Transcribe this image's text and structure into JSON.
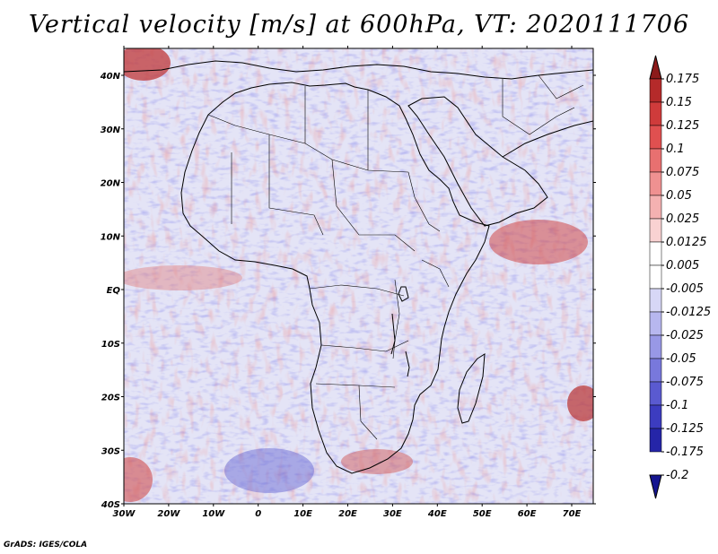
{
  "title": "Vertical velocity [m/s] at 600hPa, VT: 2020111706",
  "footer": "GrADS: IGES/COLA",
  "lat_labels": [
    "40N",
    "30N",
    "20N",
    "10N",
    "EQ",
    "10S",
    "20S",
    "30S",
    "40S"
  ],
  "lon_labels": [
    "30W",
    "20W",
    "10W",
    "0",
    "10E",
    "20E",
    "30E",
    "40E",
    "50E",
    "60E",
    "70E"
  ],
  "colorbar": {
    "labels": [
      "0.175",
      "0.15",
      "0.125",
      "0.1",
      "0.075",
      "0.05",
      "0.025",
      "0.0125",
      "0.005",
      "-0.005",
      "-0.0125",
      "-0.025",
      "-0.05",
      "-0.075",
      "-0.1",
      "-0.125",
      "-0.175",
      "-0.2"
    ],
    "colors": [
      "#8c1a1a",
      "#b52a2a",
      "#cf3b3b",
      "#e05050",
      "#e87070",
      "#ef9191",
      "#f4b1b1",
      "#f9d2d2",
      "#ffffff",
      "#ffffff",
      "#d7d7f6",
      "#b7b7ef",
      "#9898e6",
      "#7878dc",
      "#5a5ad0",
      "#3c3cc0",
      "#2525a8",
      "#151590"
    ]
  }
}
